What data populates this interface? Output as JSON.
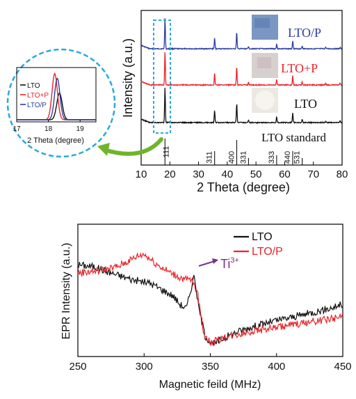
{
  "chart_data": [
    {
      "type": "line",
      "xlabel": "2 Theta (degree)",
      "ylabel": "Intensity (a.u.)",
      "xlim": [
        10,
        80
      ],
      "xticks": [
        10,
        20,
        30,
        40,
        50,
        60,
        70,
        80
      ],
      "series": [
        {
          "name": "LTO/P",
          "color": "#2b3f9e",
          "peaks": [
            [
              18.3,
              1.0
            ],
            [
              35.6,
              0.35
            ],
            [
              43.3,
              0.55
            ],
            [
              47.4,
              0.08
            ],
            [
              57.2,
              0.16
            ],
            [
              62.8,
              0.27
            ],
            [
              66.1,
              0.09
            ],
            [
              74.3,
              0.05
            ],
            [
              79.3,
              0.05
            ]
          ]
        },
        {
          "name": "LTO+P",
          "color": "#e8232a",
          "peaks": [
            [
              18.3,
              1.0
            ],
            [
              35.6,
              0.35
            ],
            [
              43.3,
              0.55
            ],
            [
              47.4,
              0.08
            ],
            [
              57.2,
              0.16
            ],
            [
              62.8,
              0.27
            ],
            [
              66.1,
              0.09
            ],
            [
              74.3,
              0.05
            ],
            [
              79.3,
              0.05
            ]
          ]
        },
        {
          "name": "LTO",
          "color": "#111111",
          "peaks": [
            [
              18.3,
              1.0
            ],
            [
              35.6,
              0.35
            ],
            [
              43.3,
              0.55
            ],
            [
              47.4,
              0.08
            ],
            [
              57.2,
              0.16
            ],
            [
              62.8,
              0.27
            ],
            [
              66.1,
              0.09
            ],
            [
              74.3,
              0.05
            ],
            [
              79.3,
              0.05
            ]
          ]
        }
      ],
      "standard": {
        "name": "LTO standard",
        "lines": [
          {
            "x": 18.3,
            "label": "111"
          },
          {
            "x": 35.6,
            "label": "311"
          },
          {
            "x": 43.3,
            "label": "400"
          },
          {
            "x": 47.4,
            "label": "331"
          },
          {
            "x": 57.2,
            "label": "333"
          },
          {
            "x": 62.8,
            "label": "440"
          },
          {
            "x": 66.1,
            "label": "531"
          }
        ]
      }
    },
    {
      "type": "line",
      "xlabel": "2 Theta (degree)",
      "xlim": [
        17,
        19.5
      ],
      "xticks": [
        17,
        18,
        19
      ],
      "series": [
        {
          "name": "LTO",
          "color": "#111111",
          "center": 18.35,
          "height": 0.55
        },
        {
          "name": "LTO+P",
          "color": "#e8232a",
          "center": 18.2,
          "height": 0.95
        },
        {
          "name": "LTO/P",
          "color": "#2b3f9e",
          "center": 18.28,
          "height": 0.85
        }
      ]
    },
    {
      "type": "line",
      "xlabel": "Magnetic feild (MHz)",
      "ylabel": "EPR Intensity (a.u.)",
      "xlim": [
        250,
        450
      ],
      "xticks": [
        250,
        300,
        350,
        400,
        450
      ],
      "annotation": {
        "text": "Ti",
        "sup": "3+",
        "x": 338
      },
      "series": [
        {
          "name": "LTO",
          "color": "#111111",
          "points": [
            [
              250,
              0.8
            ],
            [
              262,
              0.78
            ],
            [
              275,
              0.72
            ],
            [
              290,
              0.66
            ],
            [
              305,
              0.62
            ],
            [
              315,
              0.55
            ],
            [
              322,
              0.5
            ],
            [
              327,
              0.42
            ],
            [
              332,
              0.38
            ],
            [
              335,
              0.55
            ],
            [
              338,
              0.7
            ],
            [
              341,
              0.4
            ],
            [
              346,
              0.12
            ],
            [
              352,
              0.03
            ],
            [
              360,
              0.1
            ],
            [
              375,
              0.18
            ],
            [
              395,
              0.25
            ],
            [
              420,
              0.32
            ],
            [
              440,
              0.38
            ],
            [
              450,
              0.42
            ]
          ]
        },
        {
          "name": "LTO/P",
          "color": "#e8232a",
          "points": [
            [
              250,
              0.72
            ],
            [
              265,
              0.74
            ],
            [
              280,
              0.78
            ],
            [
              295,
              0.88
            ],
            [
              300,
              0.9
            ],
            [
              310,
              0.8
            ],
            [
              320,
              0.72
            ],
            [
              330,
              0.66
            ],
            [
              336,
              0.65
            ],
            [
              340,
              0.55
            ],
            [
              345,
              0.15
            ],
            [
              350,
              0.05
            ],
            [
              360,
              0.1
            ],
            [
              380,
              0.16
            ],
            [
              400,
              0.2
            ],
            [
              420,
              0.24
            ],
            [
              440,
              0.28
            ],
            [
              450,
              0.3
            ]
          ]
        }
      ]
    }
  ]
}
